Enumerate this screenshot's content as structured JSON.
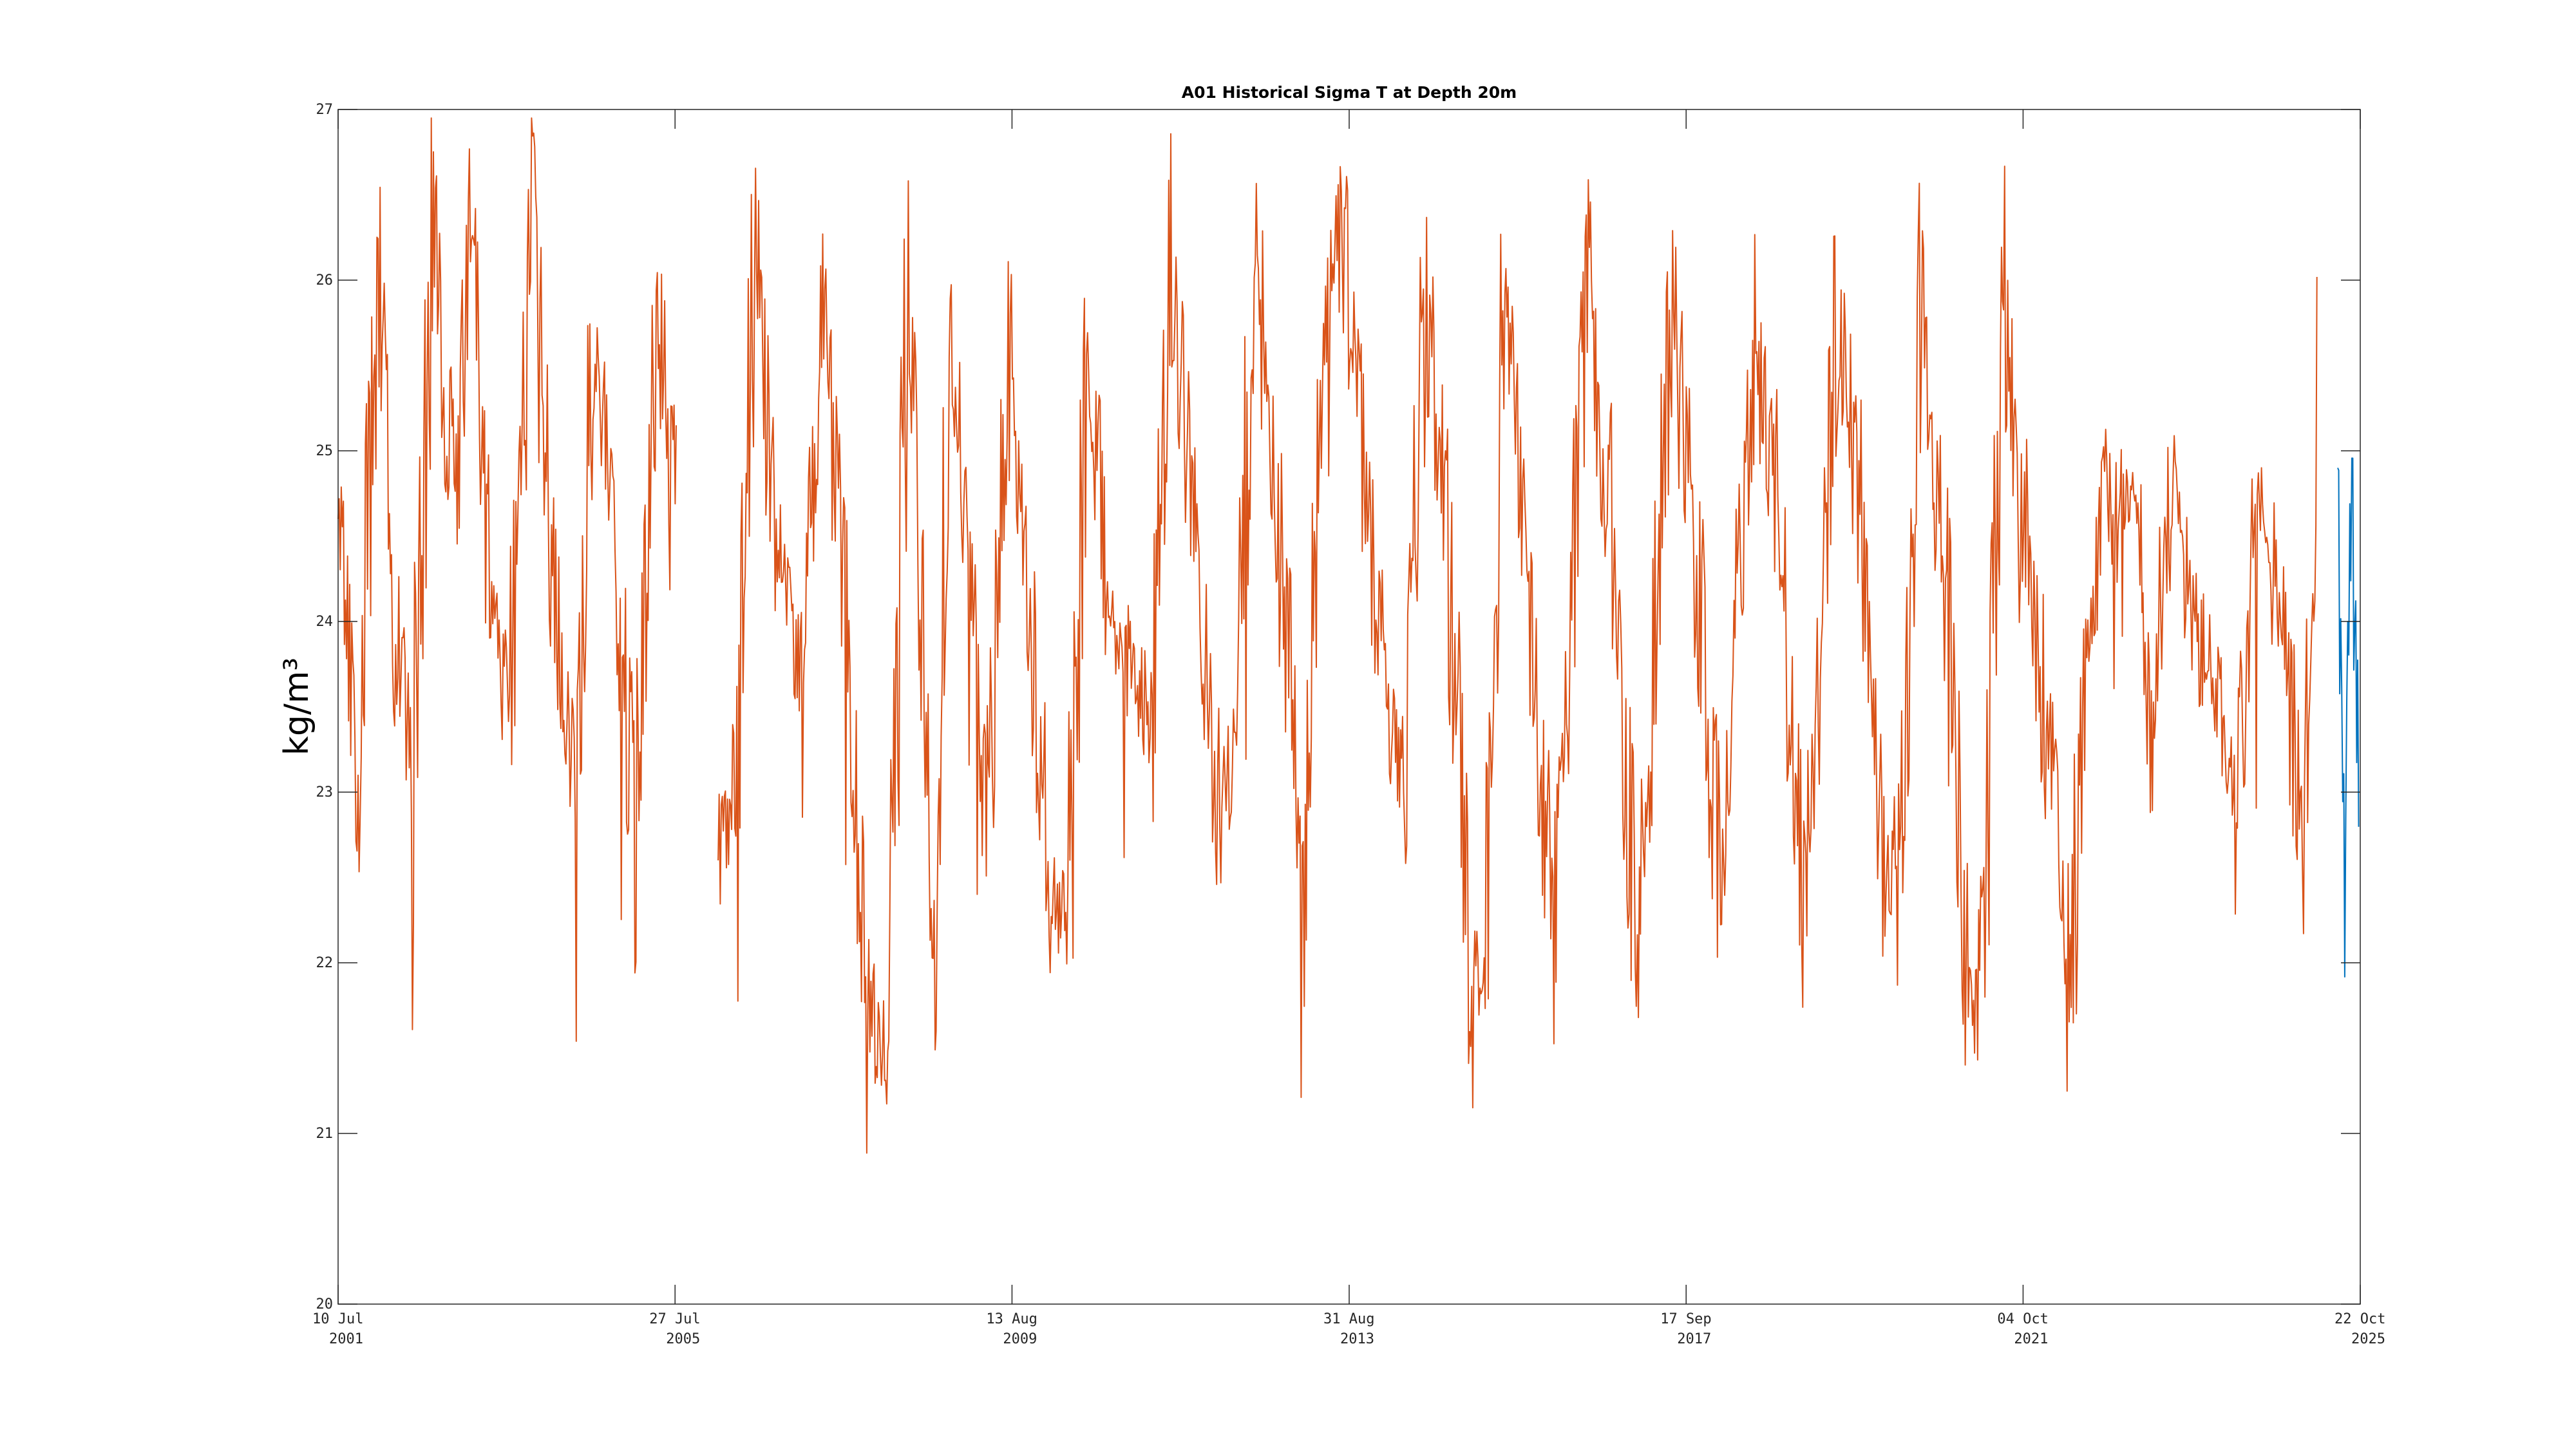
{
  "chart_data": {
    "type": "line",
    "title": "A01 Historical Sigma T at Depth 20m",
    "xlabel": "",
    "ylabel": "kg/m³",
    "ylim": [
      20,
      27
    ],
    "yticks": [
      "20",
      "21",
      "22",
      "23",
      "24",
      "25",
      "26",
      "27"
    ],
    "xlim": [
      "2001-07-10",
      "2025-10-22"
    ],
    "xticks": [
      {
        "date": "2001-07-10",
        "line1": "10 Jul",
        "line2": "2001"
      },
      {
        "date": "2005-07-27",
        "line1": "27 Jul",
        "line2": "2005"
      },
      {
        "date": "2009-08-13",
        "line1": "13 Aug",
        "line2": "2009"
      },
      {
        "date": "2013-08-31",
        "line1": "31 Aug",
        "line2": "2013"
      },
      {
        "date": "2017-09-17",
        "line1": "17 Sep",
        "line2": "2017"
      },
      {
        "date": "2021-10-04",
        "line1": "04 Oct",
        "line2": "2021"
      },
      {
        "date": "2025-10-22",
        "line1": "22 Oct",
        "line2": "2025"
      }
    ],
    "grid": false,
    "series": [
      {
        "color": "#D95319",
        "x": [
          "2001-07-10",
          "2001-10-01",
          "2002-01-01",
          "2002-03-15",
          "2002-06-01",
          "2002-09-01",
          "2002-12-01",
          "2003-02-15",
          "2003-05-01",
          "2003-08-01",
          "2003-11-01",
          "2004-02-15",
          "2004-05-15",
          "2004-08-01",
          "2004-11-01",
          "2005-02-01",
          "2005-05-01",
          "2005-08-01",
          "2005-11-01",
          "2006-02-01",
          "2006-04-15",
          "2006-07-15",
          "2006-11-01",
          "2007-02-15",
          "2007-05-01",
          "2007-08-01",
          "2007-11-01",
          "2008-02-15",
          "2008-05-15",
          "2008-07-15",
          "2008-09-01",
          "2008-11-15",
          "2009-02-15",
          "2009-05-01",
          "2009-08-01",
          "2009-11-01",
          "2010-02-01",
          "2010-04-15",
          "2010-07-15",
          "2010-10-15",
          "2011-02-01",
          "2011-04-15",
          "2011-07-15",
          "2011-10-15",
          "2012-02-15",
          "2012-04-15",
          "2012-07-15",
          "2012-10-15",
          "2013-02-15",
          "2013-05-01",
          "2013-08-01",
          "2013-11-01",
          "2014-02-15",
          "2014-05-01",
          "2014-08-01",
          "2014-11-01",
          "2015-02-15",
          "2015-04-15",
          "2015-07-15",
          "2015-10-15",
          "2016-02-15",
          "2016-04-15",
          "2016-07-15",
          "2016-10-15",
          "2017-02-15",
          "2017-04-15",
          "2017-07-15",
          "2017-10-15",
          "2018-02-15",
          "2018-04-15",
          "2018-07-15",
          "2018-10-15",
          "2019-02-15",
          "2019-04-15",
          "2019-07-15",
          "2019-10-15",
          "2020-02-15",
          "2020-04-15",
          "2020-07-15",
          "2020-10-15",
          "2021-02-15",
          "2021-04-15",
          "2021-07-15",
          "2021-10-15",
          "2022-02-15",
          "2022-04-15",
          "2022-07-15",
          "2022-10-15",
          "2023-02-15",
          "2023-04-15",
          "2023-07-15",
          "2023-10-15",
          "2024-02-15",
          "2024-05-01",
          "2024-08-01",
          "2024-11-01",
          "2025-02-15",
          "2025-04-15"
        ],
        "y": [
          24.6,
          23.1,
          26.1,
          24.0,
          23.1,
          26.3,
          24.6,
          26.4,
          24.3,
          23.3,
          26.4,
          24.1,
          23.1,
          25.6,
          24.8,
          22.6,
          25.9,
          24.6,
          null,
          22.6,
          23.1,
          26.2,
          24.2,
          23.6,
          25.8,
          24.3,
          21.9,
          21.5,
          25.9,
          24.0,
          22.0,
          25.6,
          24.3,
          22.8,
          25.6,
          24.0,
          22.4,
          22.2,
          25.8,
          24.0,
          23.7,
          23.4,
          26.1,
          24.5,
          22.8,
          23.3,
          26.2,
          24.7,
          22.5,
          25.5,
          26.3,
          24.9,
          23.4,
          23.1,
          25.9,
          24.6,
          22.0,
          21.9,
          25.9,
          24.4,
          22.2,
          23.7,
          26.0,
          24.6,
          22.1,
          23.5,
          25.9,
          24.7,
          22.5,
          23.9,
          25.6,
          24.7,
          22.4,
          23.6,
          25.9,
          24.7,
          22.5,
          22.8,
          25.9,
          24.6,
          21.3,
          22.3,
          25.7,
          24.5,
          23.0,
          21.7,
          24.0,
          24.8,
          24.7,
          23.3,
          24.9,
          24.0,
          23.5,
          23.0,
          24.7,
          24.2,
          22.7,
          25.2
        ]
      },
      {
        "color": "#0072BD",
        "x": [
          "2025-07-15",
          "2025-08-15",
          "2025-09-15",
          "2025-10-15"
        ],
        "y": [
          24.9,
          22.6,
          24.6,
          23.2
        ]
      }
    ]
  }
}
